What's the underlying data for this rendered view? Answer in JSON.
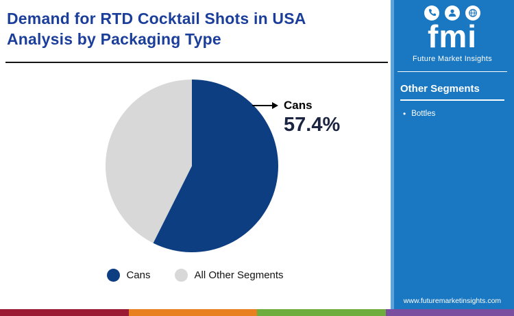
{
  "title": "Demand for RTD Cocktail Shots in USA\nAnalysis by Packaging Type",
  "colors": {
    "title_text": "#1b3e9a",
    "divider": "#141414",
    "sidebar_bg": "#1a77c1",
    "sidebar_accent": "#5ea4d8",
    "annotation_text": "#000000",
    "value_text": "#1b2440"
  },
  "chart_data": {
    "type": "pie",
    "title": "Demand for RTD Cocktail Shots in USA Analysis by Packaging Type",
    "slices": [
      {
        "label": "Cans",
        "value": 57.4,
        "color": "#0e3e82"
      },
      {
        "label": "All Other Segments",
        "value": 42.6,
        "color": "#d8d8d8"
      }
    ],
    "start_angle_deg": -90,
    "annotation": {
      "label": "Cans",
      "value_label": "57.4%"
    },
    "legend_position": "bottom"
  },
  "sidebar": {
    "logo_text": "fmi",
    "logo_tagline": "Future Market Insights",
    "logo_icons": [
      "phone-icon",
      "person-icon",
      "globe-icon"
    ],
    "section_title": "Other Segments",
    "items": [
      "Bottles"
    ],
    "website": "www.futuremarketinsights.com"
  },
  "footer": {
    "strip_colors": [
      "#9a1b33",
      "#e8801f",
      "#6fae3e",
      "#7b4fa0"
    ]
  }
}
